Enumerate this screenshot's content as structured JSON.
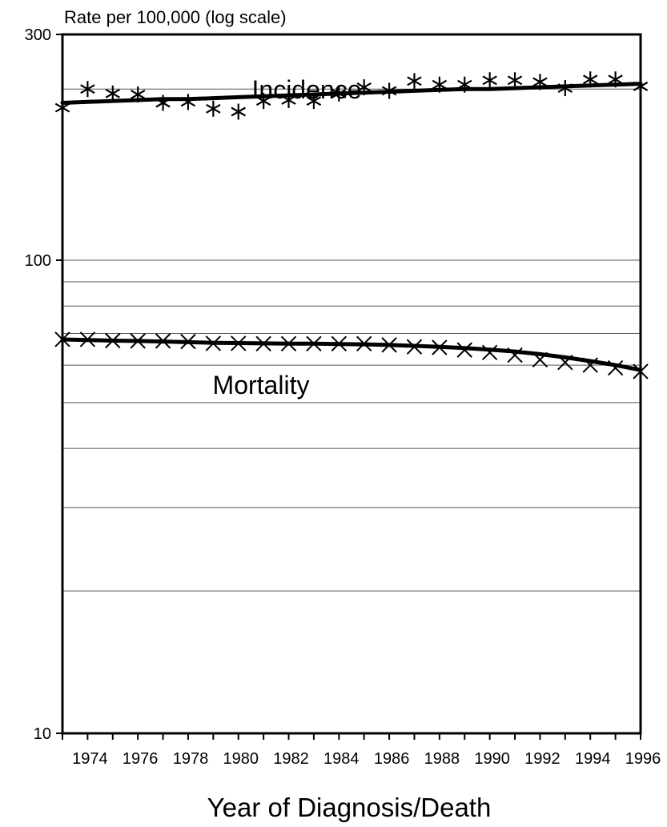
{
  "chart_data": {
    "type": "line",
    "title": "",
    "ylabel": "Rate per 100,000 (log scale)",
    "xlabel": "Year of Diagnosis/Death",
    "yscale": "log",
    "ylim": [
      10,
      300
    ],
    "xlim": [
      1973,
      1996
    ],
    "y_ticks": [
      {
        "value": 300,
        "label": "300"
      },
      {
        "value": 100,
        "label": "100"
      },
      {
        "value": 10,
        "label": "10"
      }
    ],
    "y_gridlines": [
      230,
      100,
      90,
      80,
      70,
      60,
      50,
      40,
      30,
      20
    ],
    "x_ticks": [
      {
        "value": 1974,
        "label": "1974"
      },
      {
        "value": 1976,
        "label": "1976"
      },
      {
        "value": 1978,
        "label": "1978"
      },
      {
        "value": 1980,
        "label": "1980"
      },
      {
        "value": 1982,
        "label": "1982"
      },
      {
        "value": 1984,
        "label": "1984"
      },
      {
        "value": 1986,
        "label": "1986"
      },
      {
        "value": 1988,
        "label": "1988"
      },
      {
        "value": 1990,
        "label": "1990"
      },
      {
        "value": 1992,
        "label": "1992"
      },
      {
        "value": 1994,
        "label": "1994"
      },
      {
        "value": 1996,
        "label": "1996"
      }
    ],
    "x": [
      1973,
      1974,
      1975,
      1976,
      1977,
      1978,
      1979,
      1980,
      1981,
      1982,
      1983,
      1984,
      1985,
      1986,
      1987,
      1988,
      1989,
      1990,
      1991,
      1992,
      1993,
      1994,
      1995,
      1996
    ],
    "series": [
      {
        "name": "Incidence",
        "marker": "asterisk",
        "values": [
          210,
          230,
          225,
          224,
          215,
          216,
          209,
          206,
          217,
          218,
          217,
          225,
          232,
          228,
          239,
          235,
          235,
          240,
          240,
          238,
          231,
          241,
          241,
          233
        ],
        "fit": [
          215,
          216,
          217,
          218,
          219,
          219,
          220,
          221,
          222,
          223,
          224,
          225,
          226,
          227,
          228,
          229,
          230,
          230,
          231,
          232,
          233,
          234,
          235,
          236
        ]
      },
      {
        "name": "Mortality",
        "marker": "x",
        "values": [
          68.0,
          68.0,
          67.6,
          67.5,
          67.5,
          67.3,
          66.7,
          66.7,
          66.6,
          66.6,
          66.6,
          66.6,
          66.6,
          66.2,
          65.6,
          65.4,
          64.6,
          63.8,
          63.0,
          61.6,
          60.8,
          60.0,
          59.2,
          58.2
        ],
        "fit": [
          68.0,
          67.8,
          67.6,
          67.5,
          67.3,
          67.1,
          66.9,
          66.8,
          66.7,
          66.6,
          66.6,
          66.5,
          66.4,
          66.2,
          65.9,
          65.6,
          65.2,
          64.7,
          64.1,
          63.3,
          62.3,
          61.2,
          60.0,
          58.6
        ]
      }
    ],
    "grid": true,
    "legend": "none"
  }
}
